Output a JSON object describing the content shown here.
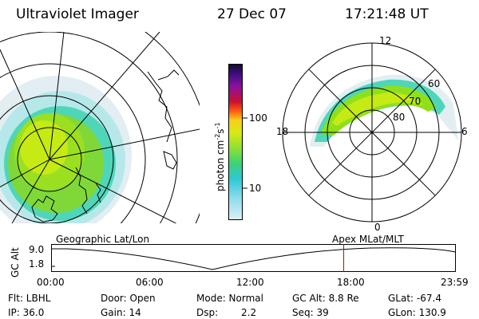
{
  "header": {
    "title": "Ultraviolet Imager",
    "date": "27 Dec 07",
    "time": "17:21:48 UT"
  },
  "colorbar": {
    "tick_labels": [
      "100",
      "10"
    ],
    "unit_label": "photon cm",
    "unit_sup1": "-2",
    "unit_mid": "s",
    "unit_sup2": "-1"
  },
  "polar_plot": {
    "mlt_labels": {
      "top": "12",
      "left": "18",
      "right": "6",
      "bottom": "0"
    },
    "mlat_labels": [
      "60",
      "70",
      "80"
    ]
  },
  "labels": {
    "geographic": "Geographic Lat/Lon",
    "apex": "Apex MLat/MLT"
  },
  "timeline": {
    "y_axis_label": "GC Alt",
    "y_ticks": [
      "9.0",
      "1.8"
    ],
    "x_ticks": [
      "00:00",
      "06:00",
      "12:00",
      "18:00",
      "23:59"
    ],
    "current_time_fraction": 0.7234
  },
  "info": {
    "flt": "Flt: LBHL",
    "ip": "IP: 36.0",
    "door": "Door: Open",
    "gain": "Gain: 14",
    "mode": "Mode: Normal",
    "dsp": "Dsp:",
    "dsp_val": "2.2",
    "gc_alt": "GC Alt: 8.8 Re",
    "seq": "Seq: 39",
    "glat": "GLat: -67.4",
    "glon": "GLon: 130.9"
  },
  "colors": {
    "aurora_core": "#8fe01a",
    "aurora_edge": "#2ccfc8",
    "timeline_marker": "#cc0000"
  }
}
